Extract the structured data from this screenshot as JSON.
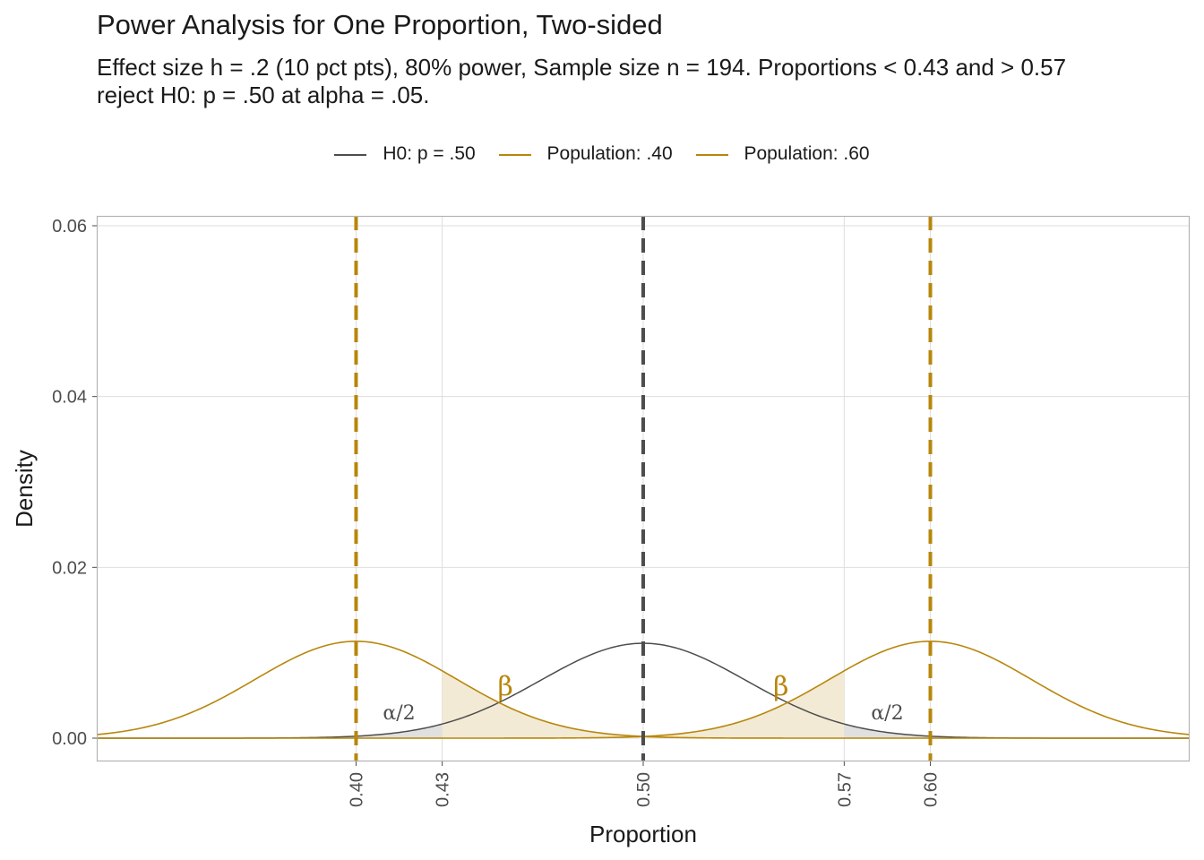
{
  "chart_data": {
    "type": "line",
    "title": "Power Analysis for One Proportion, Two-sided",
    "subtitle_lines": [
      "Effect size h = .2 (10 pct pts), 80% power, Sample size n = 194. Proportions < 0.43 and > 0.57",
      "reject H0: p = .50 at alpha = .05."
    ],
    "xlabel": "Proportion",
    "ylabel": "Density",
    "xlim": [
      0.31,
      0.69
    ],
    "ylim": [
      0,
      0.06
    ],
    "x_ticks": [
      0.4,
      0.43,
      0.5,
      0.57,
      0.6
    ],
    "x_tick_labels": [
      "0.40",
      "0.43",
      "0.50",
      "0.57",
      "0.60"
    ],
    "y_ticks": [
      0.0,
      0.02,
      0.04,
      0.06
    ],
    "y_tick_labels": [
      "0.00",
      "0.02",
      "0.04",
      "0.06"
    ],
    "grid": true,
    "legend_position": "top",
    "n": 194,
    "critical_values": [
      0.43,
      0.57
    ],
    "series": [
      {
        "name": "H0: p = .50",
        "p": 0.5,
        "color": "#4d4d4d"
      },
      {
        "name": "Population: .40",
        "p": 0.4,
        "color": "#B8860B"
      },
      {
        "name": "Population: .60",
        "p": 0.6,
        "color": "#B8860B"
      }
    ],
    "annotations": [
      {
        "text": "β",
        "x": 0.452,
        "y": 0.005,
        "kind": "beta"
      },
      {
        "text": "β",
        "x": 0.548,
        "y": 0.005,
        "kind": "beta"
      },
      {
        "text": "α/2",
        "x": 0.415,
        "y": 0.0022,
        "kind": "alpha"
      },
      {
        "text": "α/2",
        "x": 0.585,
        "y": 0.0022,
        "kind": "alpha"
      }
    ],
    "colors": {
      "accent": "#B8860B",
      "h0": "#4d4d4d",
      "beta_fill": "#F0E6CC",
      "alpha_fill": "#DDDDDD",
      "grid": "#DEDEDE"
    }
  }
}
